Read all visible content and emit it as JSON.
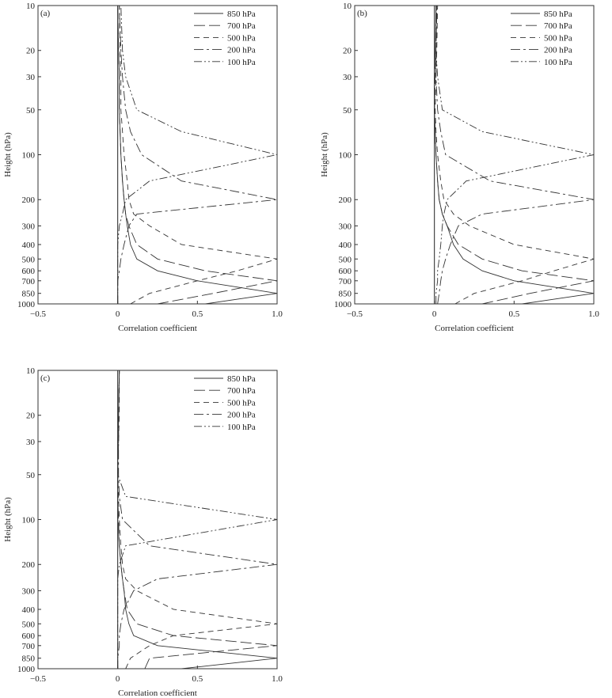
{
  "chart_data": [
    {
      "type": "line",
      "panel_label": "(a)",
      "xlabel": "Correlation coefficient",
      "ylabel": "Height (hPa)",
      "xlim": [
        -0.5,
        1.0
      ],
      "ylim": [
        1000,
        10
      ],
      "y_scale": "log",
      "x_ticks": [
        -0.5,
        0,
        0.5,
        1.0
      ],
      "x_tick_labels": [
        "−0.5",
        "0",
        "0.5",
        "1.0"
      ],
      "y_ticks": [
        10,
        20,
        30,
        50,
        100,
        200,
        300,
        400,
        500,
        600,
        700,
        850,
        1000
      ],
      "grid": false,
      "legend_position": "top-right",
      "y": [
        1000,
        850,
        700,
        600,
        500,
        400,
        300,
        250,
        200,
        150,
        100,
        70,
        50,
        30,
        20,
        10
      ],
      "series": [
        {
          "name": "850 hPa",
          "dash": "",
          "x": [
            0.55,
            1.0,
            0.5,
            0.25,
            0.12,
            0.08,
            0.06,
            0.05,
            0.04,
            0.03,
            0.02,
            0.015,
            0.01,
            0.01,
            0.005,
            0.0
          ]
        },
        {
          "name": "700 hPa",
          "dash": "14,5",
          "x": [
            0.25,
            0.6,
            1.0,
            0.55,
            0.25,
            0.12,
            0.07,
            0.05,
            0.04,
            0.03,
            0.02,
            0.015,
            0.01,
            0.01,
            0.005,
            0.0
          ]
        },
        {
          "name": "500 hPa",
          "dash": "7,5",
          "x": [
            0.08,
            0.2,
            0.5,
            0.75,
            1.0,
            0.4,
            0.2,
            0.1,
            0.07,
            0.06,
            0.04,
            0.03,
            0.02,
            0.02,
            0.015,
            0.01
          ]
        },
        {
          "name": "200 hPa",
          "dash": "12,4,3,4",
          "x": [
            0.0,
            0.0,
            0.0,
            0.01,
            0.02,
            0.04,
            0.07,
            0.12,
            1.0,
            0.4,
            0.15,
            0.08,
            0.05,
            0.03,
            0.02,
            0.01
          ]
        },
        {
          "name": "100 hPa",
          "dash": "10,3,2,3,2,3",
          "x": [
            0.0,
            0.0,
            0.0,
            0.0,
            0.0,
            0.0,
            0.01,
            0.03,
            0.05,
            0.2,
            1.0,
            0.4,
            0.12,
            0.05,
            0.03,
            0.02
          ]
        }
      ]
    },
    {
      "type": "line",
      "panel_label": "(b)",
      "xlabel": "Correlation coefficient",
      "ylabel": "Height (hPa)",
      "xlim": [
        -0.5,
        1.0
      ],
      "ylim": [
        1000,
        10
      ],
      "y_scale": "log",
      "x_ticks": [
        -0.5,
        0,
        0.5,
        1.0
      ],
      "x_tick_labels": [
        "−0.5",
        "0",
        "0.5",
        "1.0"
      ],
      "y_ticks": [
        10,
        20,
        30,
        50,
        100,
        200,
        300,
        400,
        500,
        600,
        700,
        850,
        1000
      ],
      "grid": false,
      "legend_position": "top-right",
      "y": [
        1000,
        850,
        700,
        600,
        500,
        400,
        300,
        250,
        200,
        150,
        100,
        70,
        50,
        30,
        20,
        10
      ],
      "series": [
        {
          "name": "850 hPa",
          "dash": "",
          "x": [
            0.55,
            1.0,
            0.5,
            0.3,
            0.18,
            0.12,
            0.08,
            0.05,
            0.03,
            0.02,
            0.01,
            0.005,
            0.0,
            0.0,
            0.005,
            0.01
          ]
        },
        {
          "name": "700 hPa",
          "dash": "14,5",
          "x": [
            0.3,
            0.6,
            1.0,
            0.55,
            0.3,
            0.15,
            0.08,
            0.05,
            0.03,
            0.02,
            0.01,
            0.005,
            0.0,
            0.005,
            0.01,
            0.015
          ]
        },
        {
          "name": "500 hPa",
          "dash": "7,5",
          "x": [
            0.13,
            0.25,
            0.55,
            0.75,
            1.0,
            0.5,
            0.22,
            0.12,
            0.06,
            0.04,
            0.02,
            0.01,
            0.005,
            0.01,
            0.015,
            0.02
          ]
        },
        {
          "name": "200 hPa",
          "dash": "12,4,3,4",
          "x": [
            0.02,
            0.03,
            0.04,
            0.05,
            0.07,
            0.1,
            0.15,
            0.3,
            1.0,
            0.35,
            0.07,
            0.04,
            0.02,
            0.01,
            0.01,
            0.015
          ]
        },
        {
          "name": "100 hPa",
          "dash": "10,3,2,3,2,3",
          "x": [
            0.01,
            0.01,
            0.02,
            0.02,
            0.03,
            0.04,
            0.05,
            0.06,
            0.08,
            0.2,
            1.0,
            0.3,
            0.05,
            0.02,
            0.01,
            0.01
          ]
        }
      ]
    },
    {
      "type": "line",
      "panel_label": "(c)",
      "xlabel": "Correlation coefficient",
      "ylabel": "Height (hPa)",
      "xlim": [
        -0.5,
        1.0
      ],
      "ylim": [
        1000,
        10
      ],
      "y_scale": "log",
      "x_ticks": [
        -0.5,
        0,
        0.5,
        1.0
      ],
      "x_tick_labels": [
        "−0.5",
        "0",
        "0.5",
        "1.0"
      ],
      "y_ticks": [
        10,
        20,
        30,
        50,
        100,
        200,
        300,
        400,
        500,
        600,
        700,
        850,
        1000
      ],
      "grid": false,
      "legend_position": "top-right",
      "y": [
        1000,
        850,
        700,
        600,
        500,
        400,
        300,
        250,
        200,
        150,
        100,
        70,
        50,
        30,
        20,
        10
      ],
      "series": [
        {
          "name": "850 hPa",
          "dash": "",
          "x": [
            0.4,
            1.0,
            0.25,
            0.1,
            0.07,
            0.05,
            0.04,
            0.03,
            0.02,
            0.01,
            0.0,
            0.0,
            0.0,
            0.0,
            0.005,
            0.01
          ]
        },
        {
          "name": "700 hPa",
          "dash": "14,5",
          "x": [
            0.17,
            0.2,
            1.0,
            0.35,
            0.12,
            0.06,
            0.04,
            0.03,
            0.02,
            0.01,
            0.005,
            0.0,
            0.0,
            0.005,
            0.005,
            0.01
          ]
        },
        {
          "name": "500 hPa",
          "dash": "7,5",
          "x": [
            0.05,
            0.08,
            0.2,
            0.35,
            1.0,
            0.35,
            0.12,
            0.05,
            0.03,
            0.02,
            0.01,
            0.005,
            0.0,
            0.005,
            0.01,
            0.01
          ]
        },
        {
          "name": "200 hPa",
          "dash": "12,4,3,4",
          "x": [
            0.0,
            0.0,
            0.01,
            0.01,
            0.02,
            0.04,
            0.1,
            0.25,
            1.0,
            0.2,
            0.03,
            0.01,
            0.005,
            0.005,
            0.005,
            0.01
          ]
        },
        {
          "name": "100 hPa",
          "dash": "10,3,2,3,2,3",
          "x": [
            0.0,
            0.0,
            0.0,
            0.0,
            0.0,
            0.0,
            0.0,
            0.0,
            0.01,
            0.05,
            1.0,
            0.05,
            0.0,
            0.005,
            0.005,
            0.01
          ]
        }
      ]
    }
  ]
}
